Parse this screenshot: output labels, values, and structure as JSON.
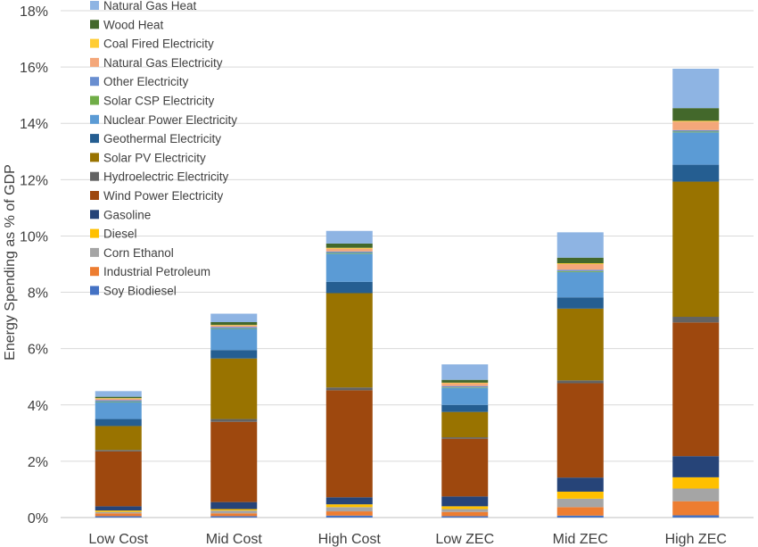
{
  "chart_data": {
    "type": "bar",
    "stacked": true,
    "title": "",
    "xlabel": "",
    "ylabel": "Energy Spending as % of GDP",
    "ylim": [
      0,
      18
    ],
    "yticks": [
      "0%",
      "2%",
      "4%",
      "6%",
      "8%",
      "10%",
      "12%",
      "14%",
      "16%",
      "18%"
    ],
    "grid": true,
    "legend_position": "top-left",
    "categories": [
      "Low Cost",
      "Mid Cost",
      "High Cost",
      "Low ZEC",
      "Mid ZEC",
      "High ZEC"
    ],
    "series": [
      {
        "name": "Soy Biodiesel",
        "color": "#4472c4",
        "values": [
          0.05,
          0.05,
          0.07,
          0.05,
          0.07,
          0.08
        ]
      },
      {
        "name": "Industrial Petroleum",
        "color": "#ed7d31",
        "values": [
          0.1,
          0.1,
          0.15,
          0.15,
          0.3,
          0.5
        ]
      },
      {
        "name": "Corn Ethanol",
        "color": "#a5a5a5",
        "values": [
          0.05,
          0.1,
          0.15,
          0.1,
          0.3,
          0.45
        ]
      },
      {
        "name": "Diesel",
        "color": "#ffc000",
        "values": [
          0.05,
          0.05,
          0.1,
          0.1,
          0.25,
          0.4
        ]
      },
      {
        "name": "Gasoline",
        "color": "#264478",
        "values": [
          0.15,
          0.25,
          0.25,
          0.35,
          0.5,
          0.75
        ]
      },
      {
        "name": "Wind Power Electricity",
        "color": "#9e480e",
        "values": [
          1.95,
          2.85,
          3.8,
          2.05,
          3.35,
          4.75
        ]
      },
      {
        "name": "Hydroelectric Electricity",
        "color": "#636363",
        "values": [
          0.05,
          0.1,
          0.1,
          0.05,
          0.1,
          0.2
        ]
      },
      {
        "name": "Solar PV Electricity",
        "color": "#997300",
        "values": [
          0.85,
          2.15,
          3.35,
          0.9,
          2.55,
          4.8
        ]
      },
      {
        "name": "Geothermal Electricity",
        "color": "#255e91",
        "values": [
          0.25,
          0.3,
          0.4,
          0.25,
          0.4,
          0.6
        ]
      },
      {
        "name": "Nuclear Power Electricity",
        "color": "#5b9bd5",
        "values": [
          0.6,
          0.75,
          1.0,
          0.6,
          0.9,
          1.15
        ]
      },
      {
        "name": "Solar CSP Electricity",
        "color": "#70ad47",
        "values": [
          0.02,
          0.02,
          0.03,
          0.02,
          0.03,
          0.03
        ]
      },
      {
        "name": "Other Electricity",
        "color": "#698ed0",
        "values": [
          0.05,
          0.05,
          0.05,
          0.05,
          0.05,
          0.05
        ]
      },
      {
        "name": "Natural Gas Electricity",
        "color": "#f4a77a",
        "values": [
          0.05,
          0.05,
          0.1,
          0.1,
          0.2,
          0.3
        ]
      },
      {
        "name": "Coal Fired Electricity",
        "color": "#ffcd33",
        "values": [
          0.02,
          0.02,
          0.03,
          0.02,
          0.03,
          0.03
        ]
      },
      {
        "name": "Wood Heat",
        "color": "#43682b",
        "values": [
          0.05,
          0.1,
          0.15,
          0.1,
          0.2,
          0.45
        ]
      },
      {
        "name": "Natural Gas Heat",
        "color": "#8eb4e3",
        "values": [
          0.2,
          0.3,
          0.45,
          0.55,
          0.9,
          1.4
        ]
      }
    ]
  }
}
